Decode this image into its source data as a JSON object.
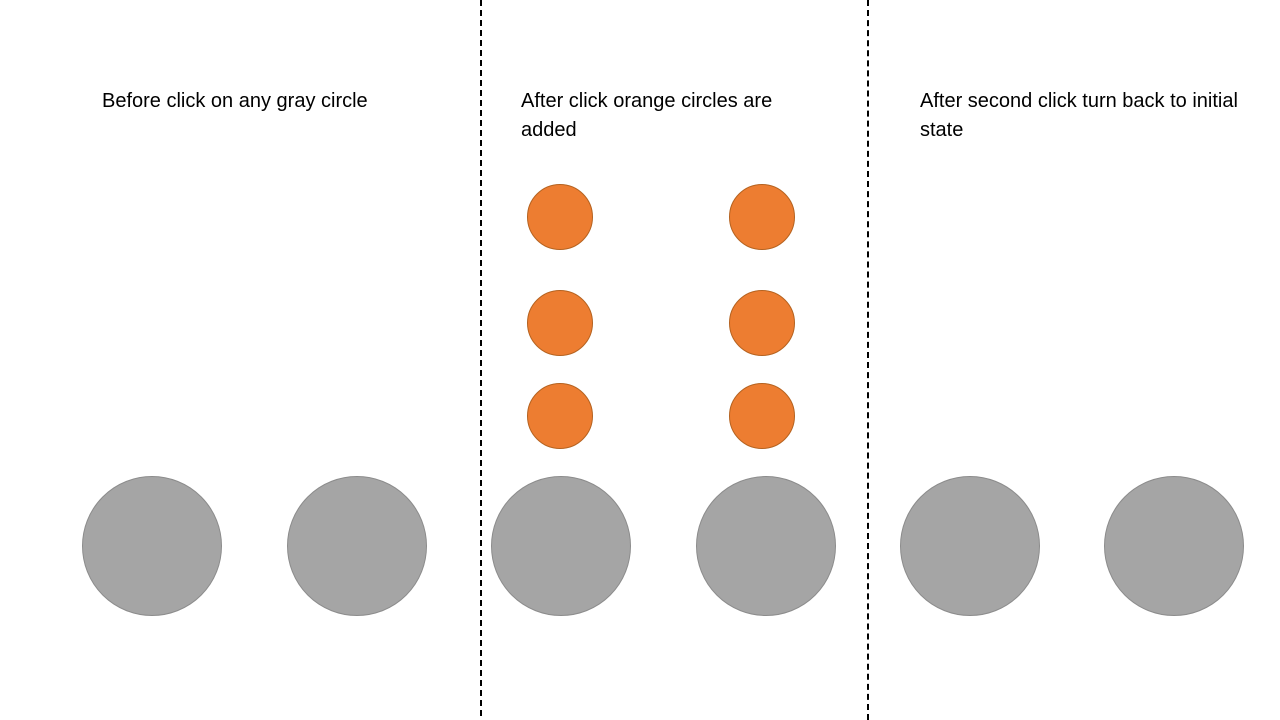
{
  "panels": [
    {
      "caption": "Before click on any gray circle"
    },
    {
      "caption": "After click orange circles are added"
    },
    {
      "caption": "After second click turn back to initial state"
    }
  ],
  "colors": {
    "gray_circle": "#a5a5a5",
    "orange_circle": "#ed7d31",
    "divider": "#000000",
    "background": "#ffffff"
  }
}
